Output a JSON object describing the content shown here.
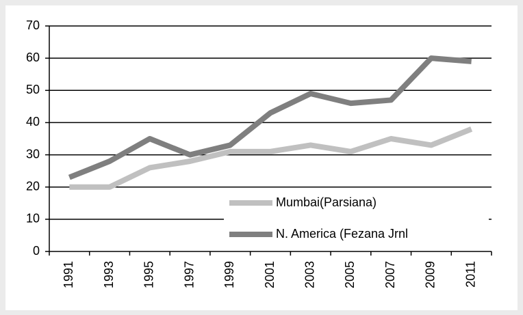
{
  "chart_data": {
    "type": "line",
    "categories": [
      "1991",
      "1993",
      "1995",
      "1997",
      "1999",
      "2001",
      "2003",
      "2005",
      "2007",
      "2009",
      "2011"
    ],
    "series": [
      {
        "name": "Mumbai(Parsiana)",
        "color": "#c0c0c0",
        "values": [
          20,
          20,
          26,
          28,
          31,
          31,
          33,
          31,
          35,
          33,
          38
        ]
      },
      {
        "name": "N. America (Fezana Jrnl",
        "color": "#7f7f7f",
        "values": [
          23,
          28,
          35,
          30,
          33,
          43,
          49,
          46,
          47,
          60,
          59
        ]
      }
    ],
    "ylim": [
      0,
      70
    ],
    "yticks": [
      0,
      10,
      20,
      30,
      40,
      50,
      60,
      70
    ],
    "grid": true,
    "legend": "bottom-right"
  }
}
